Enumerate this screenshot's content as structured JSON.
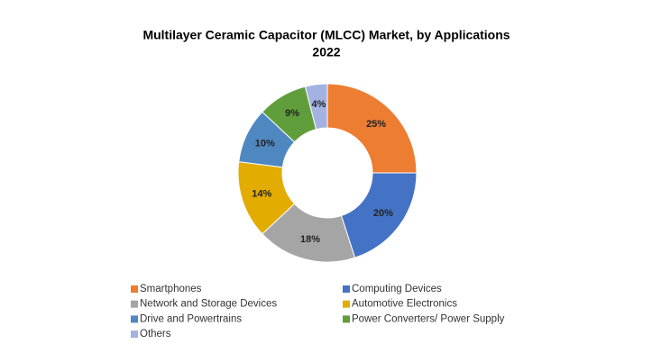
{
  "chart_data": {
    "type": "donut",
    "title": "Multilayer Ceramic Capacitor (MLCC) Market, by Applications",
    "subtitle": "2022",
    "categories": [
      "Smartphones",
      "Computing Devices",
      "Network and Storage Devices",
      "Automotive Electronics",
      "Drive and Powertrains",
      "Power Converters/ Power Supply",
      "Others"
    ],
    "values": [
      25,
      20,
      18,
      14,
      10,
      9,
      4
    ],
    "value_labels": [
      "25%",
      "20%",
      "18%",
      "14%",
      "10%",
      "9%",
      "4%"
    ],
    "colors": [
      "#ED7D31",
      "#4472C4",
      "#A5A5A5",
      "#E2AC00",
      "#4F88C0",
      "#5F9E3B",
      "#A3B2E0"
    ],
    "legend": "bottom"
  }
}
